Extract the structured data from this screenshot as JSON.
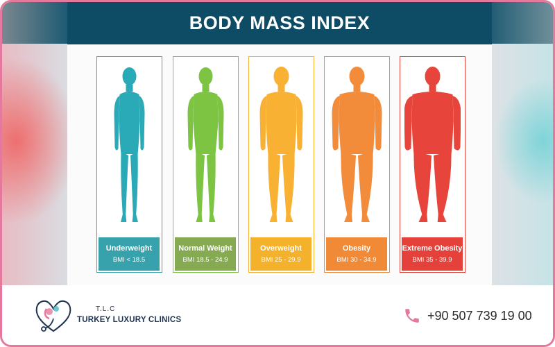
{
  "title": "BODY MASS INDEX",
  "categories": [
    {
      "name": "Underweight",
      "range": "BMI < 18.5",
      "color": "#2aa9b6",
      "box_color": "#37a2ab",
      "border_color": "#36aab6"
    },
    {
      "name": "Normal Weight",
      "range": "BMI 18.5 - 24.9",
      "color": "#7cc442",
      "box_color": "#86aa52",
      "border_color": "#7cc442"
    },
    {
      "name": "Overweight",
      "range": "BMI 25 - 29.9",
      "color": "#f8b133",
      "box_color": "#f4b12c",
      "border_color": "#f8b133"
    },
    {
      "name": "Obesity",
      "range": "BMI 30 - 34.9",
      "color": "#f28b3a",
      "box_color": "#f08a37",
      "border_color": "#f28b3a"
    },
    {
      "name": "Extreme Obesity",
      "range": "BMI 35 - 39.9",
      "color": "#e7443c",
      "box_color": "#e5413b",
      "border_color": "#e7443c"
    }
  ],
  "footer": {
    "brand_abbr": "T.L.C",
    "brand_name": "TURKEY LUXURY CLINICS",
    "phone": "+90 507 739 19 00",
    "logo_icon": "stethoscope-heart-icon",
    "phone_icon": "phone-icon",
    "accent_color": "#e4799d"
  }
}
